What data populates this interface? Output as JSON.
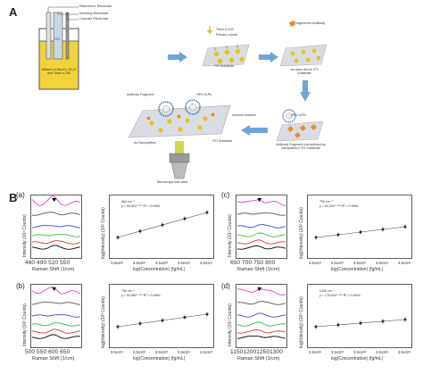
{
  "panel_a": {
    "letter": "A",
    "electrodes": [
      "Reference Electrode",
      "Working Electrode",
      "Counter Electrode"
    ],
    "ito_label": "ITO",
    "solution_label": "Mixture of HAuCl₄·3H₂O and Triton x-100",
    "legend_triton": "Triton X-100",
    "legend_crystal": "Primary crystal",
    "step1": "ITO Substrate",
    "fragment_legend": "Fragmented Antibody",
    "step2": "Au nano dot on ITO Substrate",
    "antibody_label": "Antibody Fragment",
    "hpv_label": "HPV-VLPs",
    "au_np_label": "Au Nanopattern",
    "ito_sub_label": "ITO Substrate",
    "immuno_label": "Immuno-reaction",
    "hpv_label2": "HPV-VLPs",
    "step3": "Antibody Fragment Immobilized Au nanopattern/ ITO Substrate",
    "microscope_label": "Microscope with laser"
  },
  "panel_b": {
    "letter": "B",
    "subpanels": [
      {
        "letter": "(a)",
        "spec_ticks": "460 490 520 550",
        "spec_xlabel": "Raman Shift (1/cm)",
        "legend": [
          "664 cm⁻¹",
          "y = 60.82x⁰·⁰⁰⁷  R² = 0.9983"
        ]
      },
      {
        "letter": "(b)",
        "spec_ticks": "500 550 600 650",
        "spec_xlabel": "Raman Shift (1/cm)",
        "legend": [
          "750 cm⁻¹",
          "y = 53.98x⁰·⁰⁰⁹  R² = 0.9954"
        ]
      },
      {
        "letter": "(c)",
        "spec_ticks": "650 700 750 800",
        "spec_xlabel": "Raman Shift (1/cm)",
        "legend": [
          "700 cm⁻¹",
          "y = 54.32x⁰·⁰⁰⁶  R² = 0.9965"
        ]
      },
      {
        "letter": "(d)",
        "spec_ticks": "1150120012501300",
        "spec_xlabel": "Raman Shift (1/cm)",
        "legend": [
          "1200 cm⁻¹",
          "y = 176.62x⁰·⁰⁰⁵  R² = 0.9916"
        ]
      }
    ],
    "spec_ylabel": "Intensity (10³ Counts)",
    "fit_ylabel": "log(Intensity) (10³ Counts)",
    "fit_xlabel": "log(Concentration) (fg/mL)",
    "fit_xticks": [
      "3.5x10¹",
      "3.5x10²",
      "3.5x10³",
      "3.5x10⁴",
      "3.5x10⁵"
    ]
  },
  "colors": {
    "blue_arrow": "#6fa4d8",
    "substrate": "#d9dde3",
    "crystal": "#e8c21b",
    "antibody": "#ef8a2a",
    "hpv": "#3a6ea5",
    "spectra": [
      "#e23ad1",
      "#555555",
      "#3a46d6",
      "#2fbf3a",
      "#e23232",
      "#000000"
    ]
  }
}
